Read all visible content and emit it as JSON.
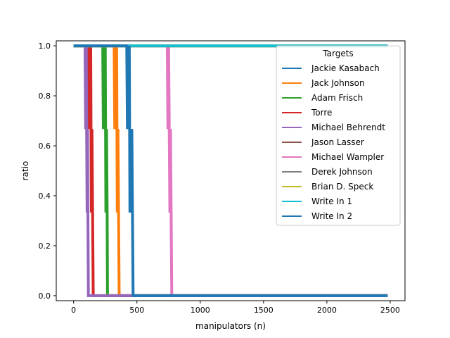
{
  "chart_data": {
    "type": "line",
    "title": "",
    "xlabel": "manipulators (n)",
    "ylabel": "ratio",
    "xlim": [
      -137,
      2617
    ],
    "ylim": [
      -0.02,
      1.02
    ],
    "x_ticks": [
      0,
      500,
      1000,
      1500,
      2000,
      2500
    ],
    "y_ticks": [
      0.0,
      0.2,
      0.4,
      0.6,
      0.8,
      1.0
    ],
    "x_tick_labels": [
      "0",
      "500",
      "1000",
      "1500",
      "2000",
      "2500"
    ],
    "y_tick_labels": [
      "0.0",
      "0.2",
      "0.4",
      "0.6",
      "0.8",
      "1.0"
    ],
    "grid": false,
    "legend": {
      "title": "Targets",
      "placement": "upper right"
    },
    "series": [
      {
        "name": "Jackie Kasabach",
        "color": "#1f77b4",
        "points": [
          [
            0,
            1
          ],
          [
            2480,
            1
          ]
        ]
      },
      {
        "name": "Jack Johnson",
        "color": "#ff7f0e",
        "points": [
          [
            0,
            1
          ],
          [
            320,
            1
          ],
          [
            325,
            0.667
          ],
          [
            330,
            1
          ],
          [
            335,
            0.667
          ],
          [
            340,
            1
          ],
          [
            345,
            0.333
          ],
          [
            350,
            0.667
          ],
          [
            355,
            0.333
          ],
          [
            360,
            0
          ],
          [
            2480,
            0
          ]
        ]
      },
      {
        "name": "Adam Frisch",
        "color": "#2ca02c",
        "points": [
          [
            0,
            1
          ],
          [
            230,
            1
          ],
          [
            235,
            0.667
          ],
          [
            240,
            1
          ],
          [
            245,
            0.667
          ],
          [
            250,
            1
          ],
          [
            255,
            0.333
          ],
          [
            260,
            0.667
          ],
          [
            265,
            0.333
          ],
          [
            268,
            0
          ],
          [
            2480,
            0
          ]
        ]
      },
      {
        "name": "Torre",
        "color": "#d62728",
        "points": [
          [
            0,
            1
          ],
          [
            115,
            1
          ],
          [
            120,
            0.667
          ],
          [
            125,
            1
          ],
          [
            130,
            0.667
          ],
          [
            135,
            1
          ],
          [
            140,
            0.333
          ],
          [
            145,
            0.667
          ],
          [
            150,
            0.333
          ],
          [
            155,
            0
          ],
          [
            2480,
            0
          ]
        ]
      },
      {
        "name": "Michael Behrendt",
        "color": "#9467bd",
        "points": [
          [
            0,
            1
          ],
          [
            90,
            1
          ],
          [
            95,
            0.667
          ],
          [
            100,
            1
          ],
          [
            103,
            0.667
          ],
          [
            107,
            0.333
          ],
          [
            110,
            0.667
          ],
          [
            113,
            0.333
          ],
          [
            117,
            0
          ],
          [
            2480,
            0
          ]
        ]
      },
      {
        "name": "Jason Lasser",
        "color": "#8c564b",
        "points": [
          [
            0,
            1
          ],
          [
            2480,
            1
          ]
        ]
      },
      {
        "name": "Michael Wampler",
        "color": "#e377c2",
        "points": [
          [
            0,
            1
          ],
          [
            740,
            1
          ],
          [
            745,
            0.667
          ],
          [
            750,
            1
          ],
          [
            755,
            0.667
          ],
          [
            760,
            0.333
          ],
          [
            765,
            0.667
          ],
          [
            770,
            0.333
          ],
          [
            775,
            0
          ],
          [
            2480,
            0
          ]
        ]
      },
      {
        "name": "Derek Johnson",
        "color": "#7f7f7f",
        "points": [
          [
            0,
            1
          ],
          [
            2480,
            1
          ]
        ]
      },
      {
        "name": "Brian D. Speck",
        "color": "#bcbd22",
        "points": [
          [
            0,
            1
          ],
          [
            2480,
            1
          ]
        ]
      },
      {
        "name": "Write In 1",
        "color": "#17becf",
        "points": [
          [
            0,
            1
          ],
          [
            2480,
            1
          ]
        ]
      },
      {
        "name": "Write In 2",
        "color": "#1f77b4",
        "points": [
          [
            0,
            1
          ],
          [
            420,
            1
          ],
          [
            425,
            0.667
          ],
          [
            430,
            1
          ],
          [
            435,
            0.667
          ],
          [
            440,
            1
          ],
          [
            445,
            0.333
          ],
          [
            450,
            0.667
          ],
          [
            455,
            0.333
          ],
          [
            460,
            0.667
          ],
          [
            465,
            0.333
          ],
          [
            470,
            0
          ],
          [
            2480,
            0
          ]
        ]
      }
    ]
  }
}
